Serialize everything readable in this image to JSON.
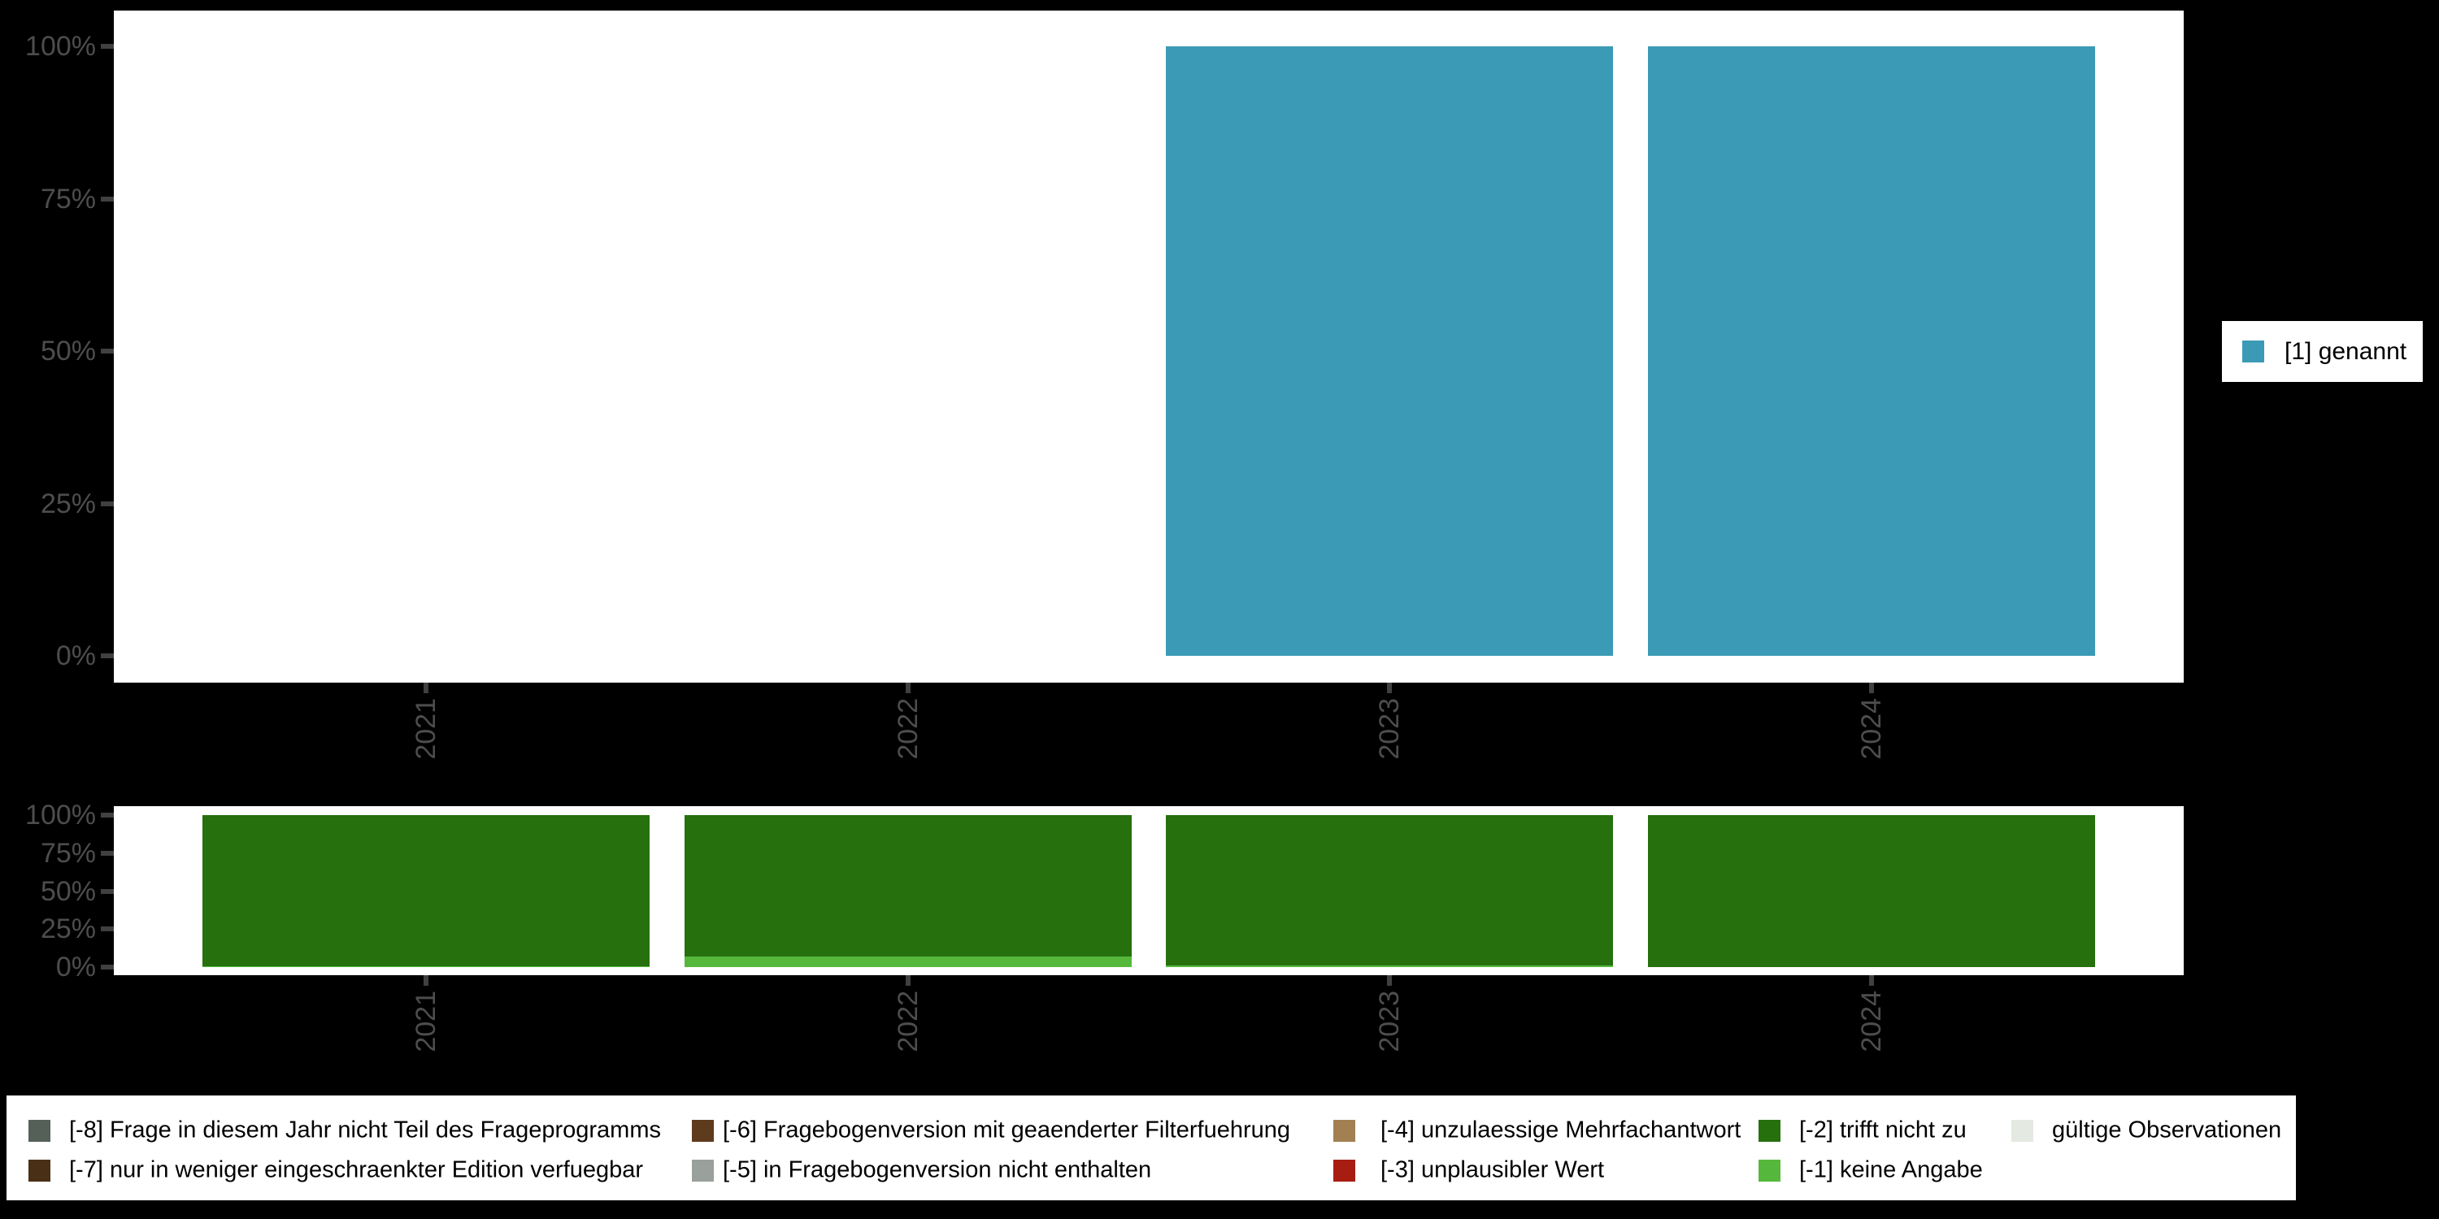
{
  "colors": {
    "background": "#000000",
    "panel": "#ffffff",
    "axis_text": "#4d4d4d",
    "tick_mark": "#404040",
    "legend_text": "#000000",
    "genannt_teal": "#3b9ab5",
    "trifft_nicht_zu_green": "#26700e",
    "keine_angabe_green": "#55b83c"
  },
  "chart_data": [
    {
      "type": "bar",
      "stacked": true,
      "title": "",
      "categories": [
        "2021",
        "2022",
        "2023",
        "2024"
      ],
      "series": [
        {
          "name": "[1] genannt",
          "color": "#3b9ab5",
          "values": [
            0,
            0,
            100,
            100
          ]
        }
      ],
      "xlabel": "",
      "ylabel": "",
      "ylim": [
        0,
        100
      ],
      "y_ticks": [
        "0%",
        "25%",
        "50%",
        "75%",
        "100%"
      ],
      "grid": false,
      "legend_position": "right"
    },
    {
      "type": "bar",
      "stacked": true,
      "title": "",
      "categories": [
        "2021",
        "2022",
        "2023",
        "2024"
      ],
      "series": [
        {
          "name": "[-1] keine Angabe",
          "color": "#55b83c",
          "values": [
            0.7,
            7,
            1,
            0
          ]
        },
        {
          "name": "[-2] trifft nicht zu",
          "color": "#26700e",
          "values": [
            99.3,
            93,
            99,
            100
          ]
        }
      ],
      "xlabel": "",
      "ylabel": "",
      "ylim": [
        0,
        100
      ],
      "y_ticks": [
        "0%",
        "25%",
        "50%",
        "75%",
        "100%"
      ],
      "grid": false,
      "legend_position": "bottom"
    }
  ],
  "right_legend": {
    "items": [
      {
        "label": "[1] genannt",
        "color": "#3b9ab5"
      }
    ]
  },
  "bottom_legend": {
    "items": [
      {
        "label": "[-8] Frage in diesem Jahr nicht Teil des Frageprogramms",
        "color": "#556058",
        "col": 0,
        "row": 0
      },
      {
        "label": "[-7] nur in weniger eingeschraenkter Edition verfuegbar",
        "color": "#4a2f17",
        "col": 0,
        "row": 1
      },
      {
        "label": "[-6] Fragebogenversion mit geaenderter Filterfuehrung",
        "color": "#5e3b1c",
        "col": 1,
        "row": 0
      },
      {
        "label": "[-5] in Fragebogenversion nicht enthalten",
        "color": "#9aa09b",
        "col": 1,
        "row": 1
      },
      {
        "label": "[-4] unzulaessige Mehrfachantwort",
        "color": "#a28052",
        "col": 2,
        "row": 0
      },
      {
        "label": "[-3] unplausibler Wert",
        "color": "#a81d12",
        "col": 2,
        "row": 1
      },
      {
        "label": "[-2] trifft nicht zu",
        "color": "#26700e",
        "col": 3,
        "row": 0
      },
      {
        "label": "[-1] keine Angabe",
        "color": "#55b83c",
        "col": 3,
        "row": 1
      },
      {
        "label": "gültige Observationen",
        "color": "#e4e9e2",
        "col": 4,
        "row": 0
      }
    ]
  }
}
